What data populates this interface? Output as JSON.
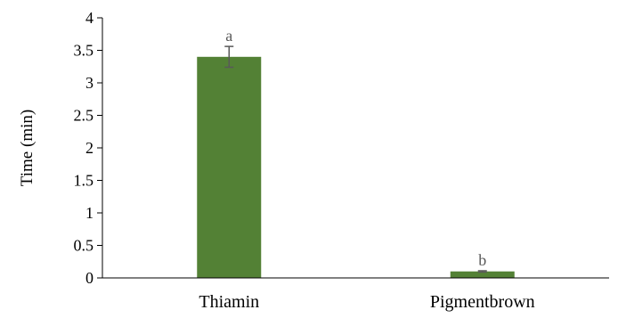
{
  "chart_data": {
    "type": "bar",
    "title": "",
    "xlabel": "",
    "ylabel": "Time (min)",
    "ylim": [
      0,
      4
    ],
    "yticks": [
      0,
      0.5,
      1,
      1.5,
      2,
      2.5,
      3,
      3.5,
      4
    ],
    "ytick_labels": [
      "0",
      "0.5",
      "1",
      "1.5",
      "2",
      "2.5",
      "3",
      "3.5",
      "4"
    ],
    "grid": false,
    "legend": "none",
    "categories": [
      "Thiamin",
      "Pigmentbrown"
    ],
    "values": [
      3.4,
      0.1
    ],
    "errors": [
      0.16,
      0.01
    ],
    "annotations": [
      "a",
      "b"
    ],
    "bar_color": "#538135",
    "error_color": "#595959",
    "annotation_color": "#595959"
  }
}
